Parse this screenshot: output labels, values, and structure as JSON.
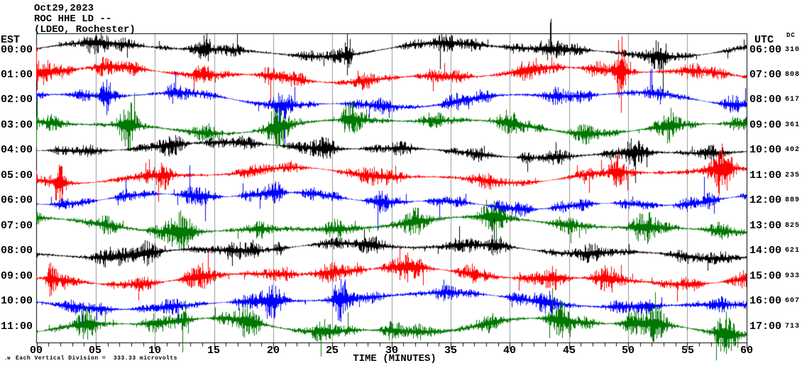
{
  "header": {
    "date": "Oct29,2023",
    "station": "ROC HHE LD --",
    "network": "(LDEO, Rochester)"
  },
  "axes": {
    "left_header": "EST",
    "right_header": "UTC",
    "dc_header": "DC",
    "x_title": "TIME (MINUTES)",
    "x_ticks": [
      "00",
      "05",
      "10",
      "15",
      "20",
      "25",
      "30",
      "35",
      "40",
      "45",
      "50",
      "55",
      "60"
    ],
    "footer_note": "Each Vertical Division =  333.33 microvolts",
    "corner_mark": ".м"
  },
  "chart_data": {
    "type": "line",
    "kind": "helicorder-seismogram",
    "title": "ROC HHE LD -- (LDEO, Rochester) Oct29,2023",
    "xlabel": "TIME (MINUTES)",
    "x_range_minutes": [
      0,
      60
    ],
    "minutes_per_line": 60,
    "vertical_division_microvolts": 333.33,
    "grid": true,
    "grid_interval_minutes": 5,
    "grid_color": "#999999",
    "border_color": "#000000",
    "background_color": "#ffffff",
    "trace_colors": {
      "black": "#000000",
      "red": "#ff0000",
      "blue": "#0000ff",
      "green": "#007700"
    },
    "rows": [
      {
        "est": "00:00",
        "utc": "06:00",
        "dc": "310",
        "color": "black",
        "seed": 11,
        "amp": 7.5,
        "wander": 8,
        "bursts": [
          [
            4,
            2.5,
            0.7
          ],
          [
            10.7,
            0.4,
            2.2
          ],
          [
            14.3,
            0.3,
            1.8
          ],
          [
            26.4,
            0.25,
            3.8
          ],
          [
            37.5,
            1.3,
            2.4
          ],
          [
            45.5,
            1.5,
            1.0
          ],
          [
            53,
            0.5,
            1.8
          ]
        ]
      },
      {
        "est": "01:00",
        "utc": "07:00",
        "dc": "808",
        "color": "red",
        "seed": 22,
        "amp": 8,
        "wander": 8,
        "bursts": [
          [
            2.5,
            2.5,
            1.4
          ],
          [
            18,
            3,
            0.5
          ],
          [
            32,
            0.4,
            1.3
          ],
          [
            44,
            3,
            0.8
          ],
          [
            49.4,
            0.25,
            3.8
          ],
          [
            58.5,
            1.2,
            1.4
          ]
        ]
      },
      {
        "est": "02:00",
        "utc": "08:00",
        "dc": "617",
        "color": "blue",
        "seed": 33,
        "amp": 7,
        "wander": 9,
        "bursts": [
          [
            0.5,
            0.3,
            2.5
          ],
          [
            5.9,
            0.3,
            2.2
          ],
          [
            11.3,
            0.3,
            1.8
          ],
          [
            21,
            1.2,
            0.8
          ],
          [
            34,
            4,
            0.5
          ],
          [
            47,
            2,
            0.6
          ],
          [
            59,
            0.5,
            1.5
          ]
        ]
      },
      {
        "est": "03:00",
        "utc": "09:00",
        "dc": "361",
        "color": "green",
        "seed": 44,
        "amp": 8.5,
        "wander": 9,
        "bursts": [
          [
            7.7,
            0.5,
            1.8
          ],
          [
            20,
            0.7,
            1.8
          ],
          [
            26.3,
            0.4,
            2.2
          ],
          [
            42,
            3,
            0.6
          ],
          [
            53.8,
            0.5,
            1.8
          ]
        ]
      },
      {
        "est": "04:00",
        "utc": "10:00",
        "dc": "402",
        "color": "black",
        "seed": 55,
        "amp": 7.5,
        "wander": 8,
        "bursts": [
          [
            13,
            1.3,
            1.7
          ],
          [
            24,
            2.5,
            0.7
          ],
          [
            41.3,
            0.3,
            1.8
          ],
          [
            50,
            2.5,
            0.8
          ]
        ]
      },
      {
        "est": "05:00",
        "utc": "11:00",
        "dc": "235",
        "color": "red",
        "seed": 66,
        "amp": 7.5,
        "wander": 8,
        "bursts": [
          [
            2,
            0.3,
            2.8
          ],
          [
            11,
            0.4,
            1.4
          ],
          [
            28,
            0.6,
            1.4
          ],
          [
            49,
            0.4,
            2.2
          ],
          [
            52.7,
            0.3,
            3.2
          ],
          [
            58,
            0.6,
            2.2
          ]
        ]
      },
      {
        "est": "06:00",
        "utc": "12:00",
        "dc": "889",
        "color": "blue",
        "seed": 77,
        "amp": 7,
        "wander": 9,
        "bursts": [
          [
            13.8,
            0.6,
            1.4
          ],
          [
            20.8,
            1.1,
            2.2
          ],
          [
            29.3,
            0.5,
            1.6
          ],
          [
            41,
            3,
            0.5
          ],
          [
            55,
            2,
            0.6
          ]
        ]
      },
      {
        "est": "07:00",
        "utc": "13:00",
        "dc": "825",
        "color": "green",
        "seed": 88,
        "amp": 8.5,
        "wander": 9,
        "bursts": [
          [
            11,
            1.6,
            2.0
          ],
          [
            22,
            0.6,
            1.6
          ],
          [
            31,
            3,
            0.5
          ],
          [
            38.9,
            0.7,
            1.6
          ],
          [
            52,
            1.5,
            0.9
          ]
        ]
      },
      {
        "est": "08:00",
        "utc": "14:00",
        "dc": "621",
        "color": "black",
        "seed": 99,
        "amp": 8,
        "wander": 8,
        "bursts": [
          [
            10,
            2.2,
            1.4
          ],
          [
            18.5,
            0.3,
            1.8
          ],
          [
            20.6,
            0.3,
            2.8
          ],
          [
            30,
            1.5,
            0.8
          ],
          [
            38.9,
            0.6,
            1.4
          ],
          [
            51,
            2,
            0.6
          ]
        ]
      },
      {
        "est": "09:00",
        "utc": "15:00",
        "dc": "933",
        "color": "red",
        "seed": 110,
        "amp": 8.5,
        "wander": 9,
        "bursts": [
          [
            1.1,
            0.3,
            2.4
          ],
          [
            14,
            2,
            0.6
          ],
          [
            23,
            0.9,
            2.0
          ],
          [
            27.2,
            0.4,
            1.7
          ],
          [
            30.8,
            0.9,
            1.8
          ],
          [
            45,
            4,
            0.8
          ]
        ]
      },
      {
        "est": "10:00",
        "utc": "16:00",
        "dc": "607",
        "color": "blue",
        "seed": 121,
        "amp": 7.5,
        "wander": 9,
        "bursts": [
          [
            7,
            2,
            0.6
          ],
          [
            19.5,
            1.3,
            1.4
          ],
          [
            25.5,
            0.6,
            2.6
          ],
          [
            30.5,
            0.6,
            1.4
          ],
          [
            43,
            3,
            0.6
          ],
          [
            53,
            1.5,
            0.8
          ]
        ]
      },
      {
        "est": "11:00",
        "utc": "17:00",
        "dc": "713",
        "color": "green",
        "seed": 132,
        "amp": 8.5,
        "wander": 9,
        "bursts": [
          [
            4.7,
            0.6,
            1.4
          ],
          [
            13,
            2,
            0.8
          ],
          [
            17.6,
            0.7,
            1.4
          ],
          [
            27,
            3,
            0.7
          ],
          [
            34.2,
            0.5,
            2.8
          ],
          [
            44,
            1.2,
            1.1
          ],
          [
            50.8,
            1.6,
            1.8
          ],
          [
            58,
            0.6,
            1.8
          ]
        ]
      }
    ]
  }
}
